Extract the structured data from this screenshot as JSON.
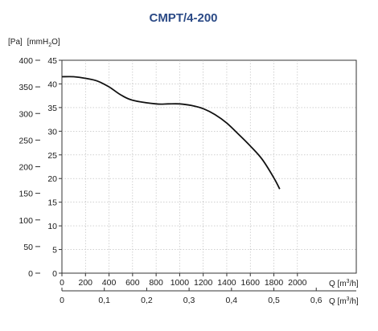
{
  "chart_data": {
    "type": "line",
    "title": "CMPT/4-200",
    "y_units": {
      "pa": "[Pa]",
      "mmh2o": "[mmH",
      "mmh2o_sub": "2",
      "mmh2o_end": "O]"
    },
    "y_pa_ticks": [
      "400",
      "350",
      "300",
      "250",
      "200",
      "150",
      "100",
      "50",
      "0"
    ],
    "y_mm_ticks": [
      "45",
      "40",
      "35",
      "30",
      "25",
      "20",
      "15",
      "10",
      "5",
      "0"
    ],
    "x_m3h_ticks": [
      "0",
      "200",
      "400",
      "600",
      "800",
      "1000",
      "1200",
      "1400",
      "1600",
      "1800",
      "2000"
    ],
    "x_m3s_ticks": [
      "0",
      "0,1",
      "0,2",
      "0,3",
      "0,4",
      "0,5",
      "0,6"
    ],
    "x_label_m3h": {
      "q": "Q [m",
      "sup": "3",
      "end": "/h]"
    },
    "x_label_m3s": {
      "q": "Q [m",
      "sup": "3",
      "end": "/h]"
    },
    "ylim_pa": [
      0,
      400
    ],
    "xlim_m3h": [
      0,
      2500
    ],
    "grid": true,
    "series": [
      {
        "x": [
          0,
          100,
          200,
          300,
          400,
          500,
          600,
          800,
          900,
          1000,
          1100,
          1200,
          1300,
          1400,
          1500,
          1600,
          1700,
          1800,
          1850
        ],
        "y": [
          369,
          369,
          366,
          361,
          350,
          335,
          325,
          318,
          318,
          318,
          315,
          309,
          298,
          282,
          261,
          239,
          214,
          179,
          158
        ]
      }
    ]
  }
}
